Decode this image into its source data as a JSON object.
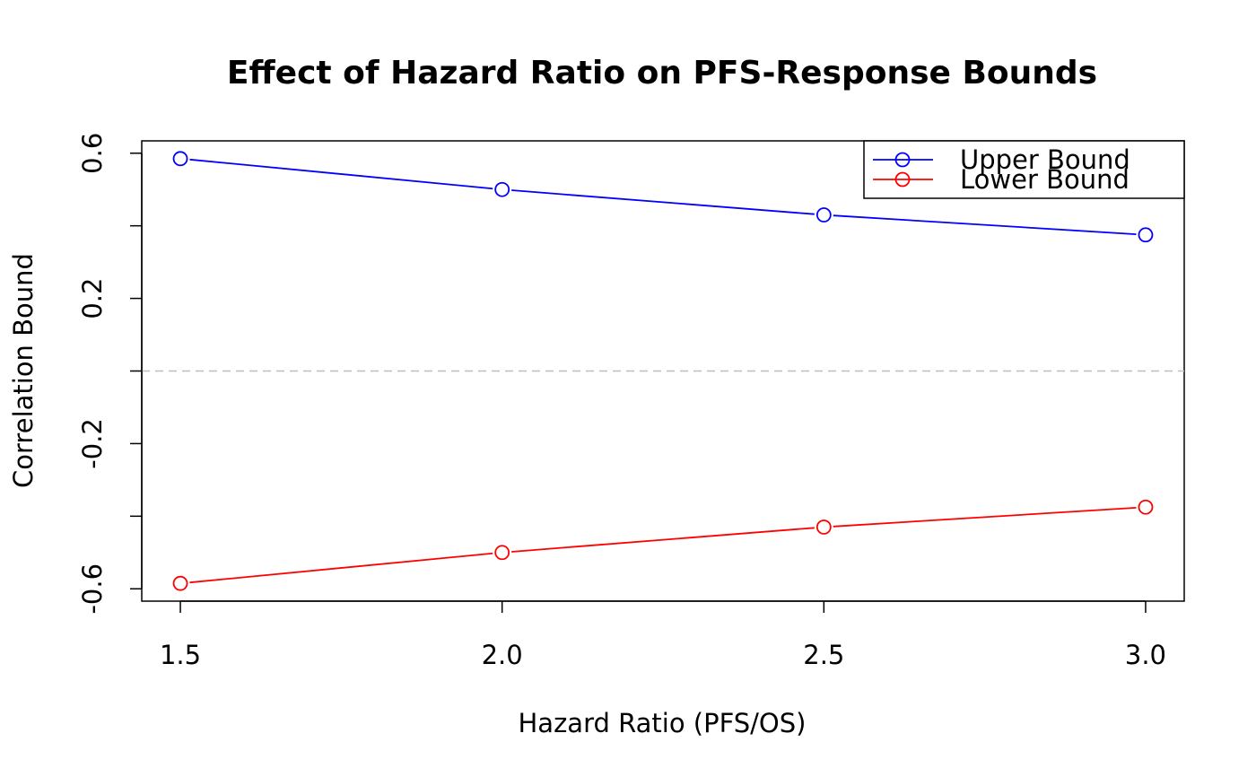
{
  "chart_data": {
    "type": "line",
    "title": "Effect of Hazard Ratio on PFS-Response Bounds",
    "xlabel": "Hazard Ratio (PFS/OS)",
    "ylabel": "Correlation Bound",
    "x": [
      1.5,
      2.0,
      2.5,
      3.0
    ],
    "x_tick_labels": [
      "1.5",
      "2.0",
      "2.5",
      "3.0"
    ],
    "y_ticks": [
      -0.6,
      -0.4,
      -0.2,
      0.0,
      0.2,
      0.4,
      0.6
    ],
    "y_tick_labels": [
      "-0.6",
      "",
      "-0.2",
      "",
      "0.2",
      "",
      "0.6"
    ],
    "xlim": [
      1.44,
      3.06
    ],
    "ylim": [
      -0.634,
      0.634
    ],
    "reference_line": {
      "y": 0.0,
      "style": "dashed",
      "color": "#bebebe"
    },
    "series": [
      {
        "name": "Upper Bound",
        "color": "#0000ff",
        "marker": "open-circle",
        "values": [
          0.585,
          0.5,
          0.43,
          0.375
        ]
      },
      {
        "name": "Lower Bound",
        "color": "#ff0000",
        "marker": "open-circle",
        "values": [
          -0.585,
          -0.5,
          -0.43,
          -0.375
        ]
      }
    ],
    "legend": {
      "position": "top-right",
      "box": true
    },
    "grid": false
  }
}
